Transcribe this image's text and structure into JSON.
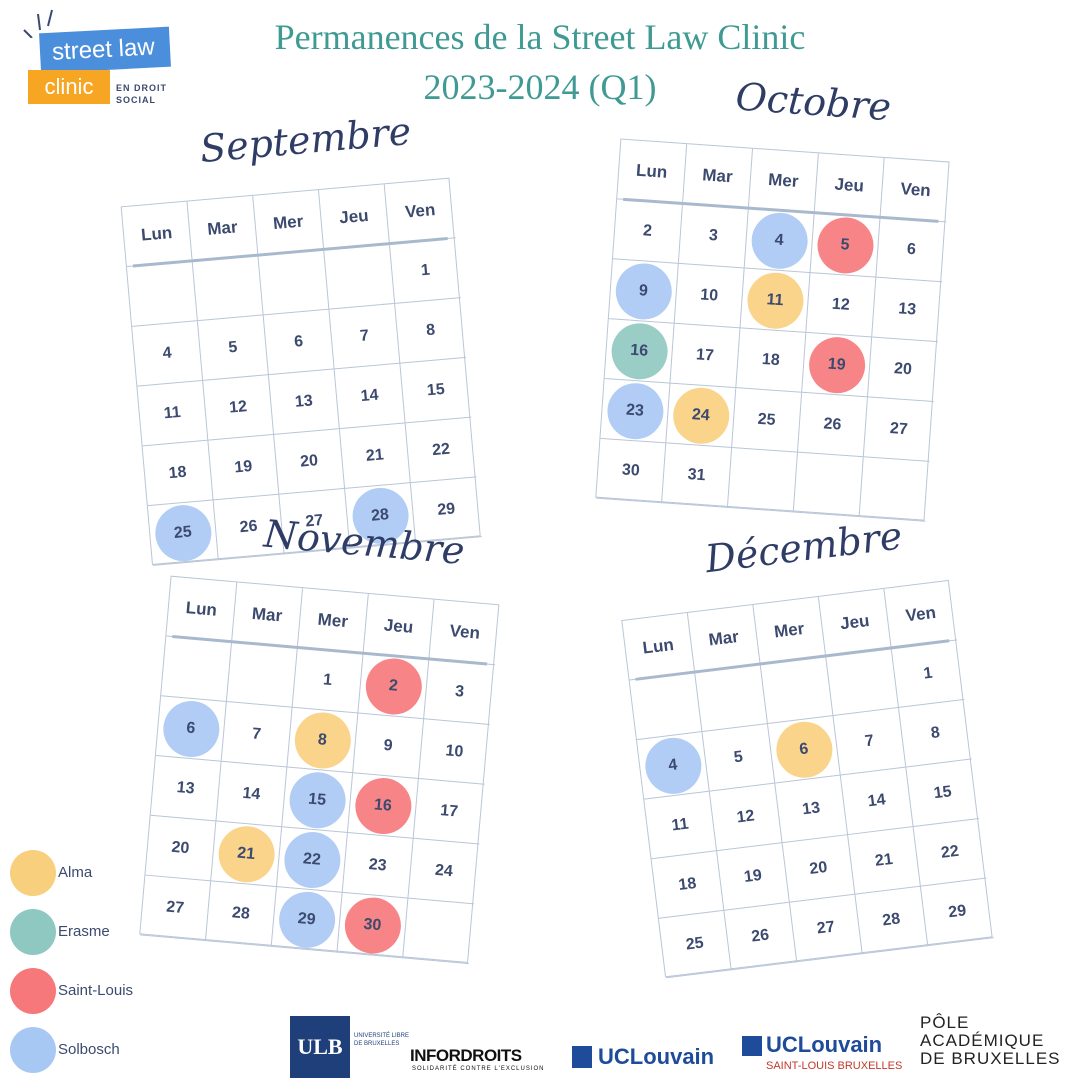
{
  "title": {
    "line1": "Permanences de la Street Law Clinic",
    "line2": "2023-2024 (Q1)"
  },
  "logo": {
    "top": "street law",
    "bottom": "clinic",
    "sub_line1": "EN DROIT",
    "sub_line2": "SOCIAL"
  },
  "day_headers": [
    "Lun",
    "Mar",
    "Mer",
    "Jeu",
    "Ven"
  ],
  "colors": {
    "alma": "#f8cf7d",
    "erasme": "#8fc8c0",
    "saint_louis": "#f6787a",
    "solbosch": "#a8c8f4",
    "title": "#3e9a93"
  },
  "months": [
    {
      "name": "Septembre",
      "cells": [
        {
          "d": ""
        },
        {
          "d": ""
        },
        {
          "d": ""
        },
        {
          "d": ""
        },
        {
          "d": "1"
        },
        {
          "d": "4"
        },
        {
          "d": "5"
        },
        {
          "d": "6"
        },
        {
          "d": "7"
        },
        {
          "d": "8"
        },
        {
          "d": "11"
        },
        {
          "d": "12"
        },
        {
          "d": "13"
        },
        {
          "d": "14"
        },
        {
          "d": "15"
        },
        {
          "d": "18"
        },
        {
          "d": "19"
        },
        {
          "d": "20"
        },
        {
          "d": "21"
        },
        {
          "d": "22"
        },
        {
          "d": "25",
          "loc": "solbosch"
        },
        {
          "d": "26"
        },
        {
          "d": "27"
        },
        {
          "d": "28",
          "loc": "solbosch"
        },
        {
          "d": "29"
        }
      ]
    },
    {
      "name": "Octobre",
      "cells": [
        {
          "d": "2"
        },
        {
          "d": "3"
        },
        {
          "d": "4",
          "loc": "solbosch"
        },
        {
          "d": "5",
          "loc": "saint_louis"
        },
        {
          "d": "6"
        },
        {
          "d": "9",
          "loc": "solbosch"
        },
        {
          "d": "10"
        },
        {
          "d": "11",
          "loc": "alma"
        },
        {
          "d": "12"
        },
        {
          "d": "13"
        },
        {
          "d": "16",
          "loc": "erasme"
        },
        {
          "d": "17"
        },
        {
          "d": "18"
        },
        {
          "d": "19",
          "loc": "saint_louis"
        },
        {
          "d": "20"
        },
        {
          "d": "23",
          "loc": "solbosch"
        },
        {
          "d": "24",
          "loc": "alma"
        },
        {
          "d": "25"
        },
        {
          "d": "26"
        },
        {
          "d": "27"
        },
        {
          "d": "30"
        },
        {
          "d": "31"
        },
        {
          "d": ""
        },
        {
          "d": ""
        },
        {
          "d": ""
        }
      ]
    },
    {
      "name": "Novembre",
      "cells": [
        {
          "d": ""
        },
        {
          "d": ""
        },
        {
          "d": "1"
        },
        {
          "d": "2",
          "loc": "saint_louis"
        },
        {
          "d": "3"
        },
        {
          "d": "6",
          "loc": "solbosch"
        },
        {
          "d": "7"
        },
        {
          "d": "8",
          "loc": "alma"
        },
        {
          "d": "9"
        },
        {
          "d": "10"
        },
        {
          "d": "13"
        },
        {
          "d": "14"
        },
        {
          "d": "15",
          "loc": "solbosch"
        },
        {
          "d": "16",
          "loc": "saint_louis"
        },
        {
          "d": "17"
        },
        {
          "d": "20"
        },
        {
          "d": "21",
          "loc": "alma"
        },
        {
          "d": "22",
          "loc": "solbosch"
        },
        {
          "d": "23"
        },
        {
          "d": "24"
        },
        {
          "d": "27"
        },
        {
          "d": "28"
        },
        {
          "d": "29",
          "loc": "solbosch"
        },
        {
          "d": "30",
          "loc": "saint_louis"
        },
        {
          "d": ""
        }
      ]
    },
    {
      "name": "Décembre",
      "cells": [
        {
          "d": ""
        },
        {
          "d": ""
        },
        {
          "d": ""
        },
        {
          "d": ""
        },
        {
          "d": "1"
        },
        {
          "d": "4",
          "loc": "solbosch"
        },
        {
          "d": "5"
        },
        {
          "d": "6",
          "loc": "alma"
        },
        {
          "d": "7"
        },
        {
          "d": "8"
        },
        {
          "d": "11"
        },
        {
          "d": "12"
        },
        {
          "d": "13"
        },
        {
          "d": "14"
        },
        {
          "d": "15"
        },
        {
          "d": "18"
        },
        {
          "d": "19"
        },
        {
          "d": "20"
        },
        {
          "d": "21"
        },
        {
          "d": "22"
        },
        {
          "d": "25"
        },
        {
          "d": "26"
        },
        {
          "d": "27"
        },
        {
          "d": "28"
        },
        {
          "d": "29"
        }
      ]
    }
  ],
  "legend": [
    {
      "key": "alma",
      "label": "Alma"
    },
    {
      "key": "erasme",
      "label": "Erasme"
    },
    {
      "key": "saint_louis",
      "label": "Saint-Louis"
    },
    {
      "key": "solbosch",
      "label": "Solbosch"
    }
  ],
  "sponsors": {
    "ulb": "ULB",
    "ulb_sub": "UNIVERSITÉ LIBRE DE BRUXELLES",
    "infordroits": "INFORDROITS",
    "infordroits_tag": "SOLIDARITÉ CONTRE L'EXCLUSION",
    "uclouvain": "UCLouvain",
    "uclouvain_sl": "UCLouvain",
    "uclouvain_sl_sub": "SAINT-LOUIS BRUXELLES",
    "pole_line1": "PÔLE",
    "pole_line2": "ACADÉMIQUE",
    "pole_line3": "DE BRUXELLES"
  }
}
